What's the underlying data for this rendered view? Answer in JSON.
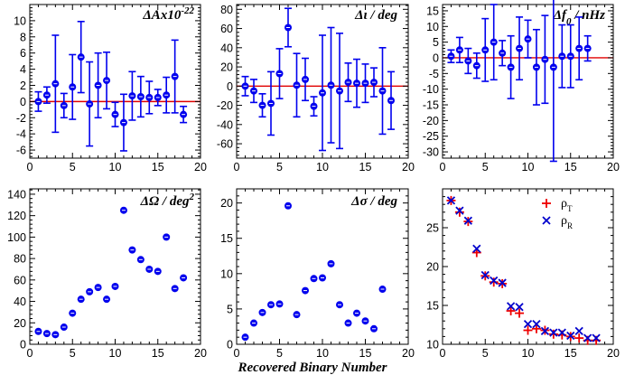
{
  "figure": {
    "xlabel": "Recovered Binary Number",
    "marker_color": "#0000ee",
    "zero_line_color": "#e00000",
    "rho_t_color": "#ee0000",
    "rho_r_color": "#0000cc"
  },
  "chart_data": [
    {
      "type": "scatter",
      "title": "ΔAx10^-22",
      "xlim": [
        0,
        20
      ],
      "ylim": [
        -7,
        12
      ],
      "xticks": [
        0,
        5,
        10,
        15,
        20
      ],
      "yticks": [
        -6,
        -4,
        -2,
        0,
        2,
        4,
        6,
        8,
        10
      ],
      "zero_line": true,
      "x": [
        1,
        2,
        3,
        4,
        5,
        6,
        7,
        8,
        9,
        10,
        11,
        12,
        13,
        14,
        15,
        16,
        17,
        18
      ],
      "y": [
        0,
        0.8,
        2.2,
        -0.5,
        1.8,
        5.5,
        -0.3,
        2.0,
        2.6,
        -1.6,
        -2.6,
        0.7,
        0.6,
        0.5,
        0.5,
        0.8,
        3.1,
        -1.6
      ],
      "yerr": [
        1.2,
        1.0,
        6.0,
        1.5,
        4.0,
        4.4,
        5.2,
        4.0,
        3.5,
        1.5,
        3.5,
        3.0,
        2.5,
        2.0,
        1.0,
        2.2,
        4.5,
        1.0
      ]
    },
    {
      "type": "scatter",
      "title": "Δι / deg",
      "xlim": [
        0,
        20
      ],
      "ylim": [
        -75,
        85
      ],
      "xticks": [
        0,
        5,
        10,
        15,
        20
      ],
      "yticks": [
        -60,
        -40,
        -20,
        0,
        20,
        40,
        60,
        80
      ],
      "zero_line": true,
      "x": [
        1,
        2,
        3,
        4,
        5,
        6,
        7,
        8,
        9,
        10,
        11,
        12,
        13,
        14,
        15,
        16,
        17,
        18
      ],
      "y": [
        0,
        -5,
        -20,
        -18,
        13,
        61,
        1,
        7,
        -21,
        -7,
        1,
        -5,
        4,
        3,
        3,
        4,
        -5,
        -15
      ],
      "yerr": [
        10,
        12,
        12,
        33,
        26,
        20,
        33,
        22,
        10,
        60,
        60,
        60,
        20,
        25,
        20,
        15,
        45,
        30
      ]
    },
    {
      "type": "scatter",
      "title": "Δf_0 / nHz",
      "title_main": "Δf",
      "title_sub": "0",
      "title_rest": " / nHz",
      "xlim": [
        0,
        20
      ],
      "ylim": [
        -32,
        17
      ],
      "xticks": [
        0,
        5,
        10,
        15,
        20
      ],
      "yticks": [
        -30,
        -25,
        -20,
        -15,
        -10,
        -5,
        0,
        5,
        10,
        15
      ],
      "zero_line": true,
      "x": [
        1,
        2,
        3,
        4,
        5,
        6,
        7,
        8,
        9,
        10,
        11,
        12,
        13,
        14,
        15,
        16,
        17
      ],
      "y": [
        0.5,
        2.5,
        -1,
        -2.5,
        2.5,
        5,
        1.5,
        -3,
        3,
        6,
        -3,
        -0.5,
        -3,
        0.5,
        0.5,
        3,
        3
      ],
      "yerr": [
        2,
        4,
        4,
        4,
        10,
        12,
        4,
        10,
        10,
        6,
        12,
        14,
        30,
        10,
        10,
        10,
        4
      ]
    },
    {
      "type": "scatter",
      "title": "ΔΩ / deg^2",
      "title_main": "ΔΩ / deg",
      "title_sup": "2",
      "xlim": [
        0,
        20
      ],
      "ylim": [
        0,
        145
      ],
      "xticks": [
        0,
        5,
        10,
        15,
        20
      ],
      "yticks": [
        0,
        20,
        40,
        60,
        80,
        100,
        120,
        140
      ],
      "x": [
        1,
        2,
        3,
        4,
        5,
        6,
        7,
        8,
        9,
        10,
        11,
        12,
        13,
        14,
        15,
        16,
        17,
        18
      ],
      "y": [
        12,
        10,
        9,
        16,
        29,
        42,
        49,
        53,
        42,
        54,
        125,
        88,
        79,
        70,
        68,
        100,
        52,
        62
      ]
    },
    {
      "type": "scatter",
      "title": "Δσ / deg",
      "xlim": [
        0,
        20
      ],
      "ylim": [
        0,
        22
      ],
      "xticks": [
        0,
        5,
        10,
        15,
        20
      ],
      "yticks": [
        0,
        5,
        10,
        15,
        20
      ],
      "x": [
        1,
        2,
        3,
        4,
        5,
        6,
        7,
        8,
        9,
        10,
        11,
        12,
        13,
        14,
        15,
        16,
        17
      ],
      "y": [
        1,
        3,
        4.5,
        5.6,
        5.7,
        19.6,
        4.2,
        7.6,
        9.3,
        9.4,
        11.4,
        5.6,
        3,
        4.4,
        3.3,
        2.2,
        7.8
      ]
    },
    {
      "type": "scatter",
      "title": "",
      "xlim": [
        0,
        20
      ],
      "ylim": [
        10,
        30
      ],
      "xticks": [
        0,
        5,
        10,
        15,
        20
      ],
      "yticks": [
        10,
        15,
        20,
        25
      ],
      "legend": "top-right",
      "series": [
        {
          "name": "ρ_T",
          "label_main": "ρ",
          "label_sub": "T",
          "marker": "plus",
          "x": [
            1,
            2,
            3,
            4,
            5,
            6,
            7,
            8,
            9,
            10,
            11,
            12,
            13,
            14,
            15,
            16,
            17,
            18
          ],
          "y": [
            28.5,
            27.0,
            25.8,
            21.8,
            18.8,
            18.0,
            17.8,
            14.3,
            14.0,
            11.8,
            12.0,
            11.8,
            11.3,
            11.2,
            11.0,
            10.8,
            10.5,
            10.5
          ]
        },
        {
          "name": "ρ_R",
          "label_main": "ρ",
          "label_sub": "R",
          "marker": "cross",
          "x": [
            1,
            2,
            3,
            4,
            5,
            6,
            7,
            8,
            9,
            10,
            11,
            12,
            13,
            14,
            15,
            16,
            17,
            18
          ],
          "y": [
            28.5,
            27.2,
            25.9,
            22.3,
            18.9,
            18.2,
            17.9,
            14.9,
            14.8,
            12.6,
            12.6,
            11.7,
            11.5,
            11.5,
            11.1,
            11.7,
            10.8,
            10.8
          ]
        }
      ]
    }
  ]
}
